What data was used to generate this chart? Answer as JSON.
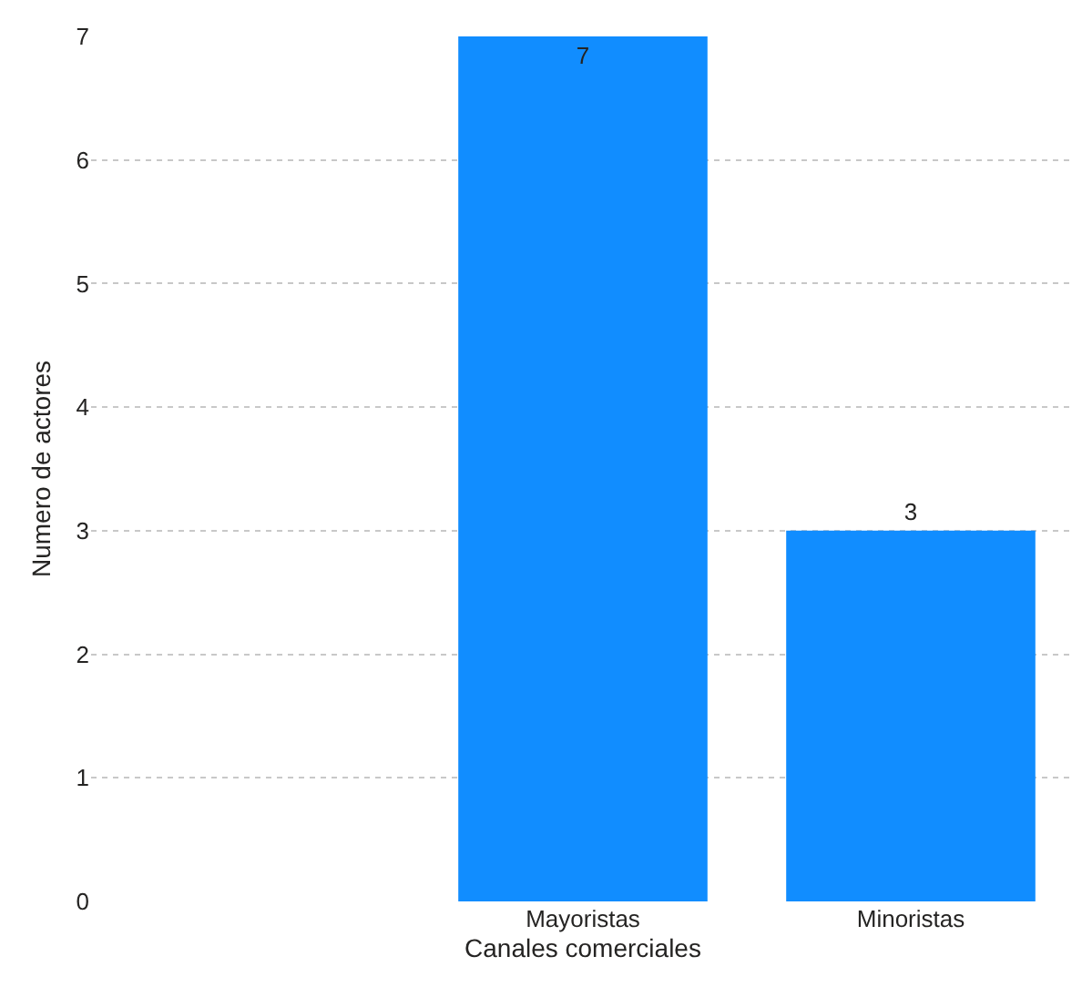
{
  "chart_data": {
    "type": "bar",
    "xlabel": "Canales comerciales",
    "ylabel": "Numero de actores",
    "categories": [
      null,
      "Mayoristas",
      "Minoristas"
    ],
    "values": [
      null,
      7,
      3
    ],
    "color": "#118dff",
    "ylim": [
      0,
      7
    ],
    "yticks": [
      0,
      1,
      2,
      3,
      4,
      5,
      6,
      7
    ],
    "grid": "y",
    "data_labels": true,
    "legend": false
  }
}
